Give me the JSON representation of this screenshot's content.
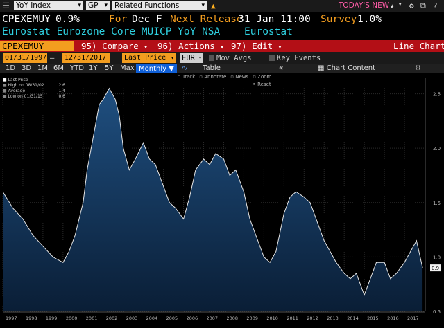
{
  "cmdbar": {
    "security": "CPEXEMUY",
    "yellow_key": "Index",
    "ticker_field": "YoY Index",
    "gp": "GP",
    "related": "Related Functions Menu",
    "todays_new": "TODAY'S NEW"
  },
  "header": {
    "ticker": "CPEXEMUY",
    "value": "0.9%",
    "for_label": "For",
    "for_value": "Dec F",
    "next_release_label": "Next Release",
    "next_release_value": "31 Jan 11:00",
    "survey_label": "Survey",
    "survey_value": "1.0%",
    "description": "Eurostat Eurozone Core MUICP YoY NSA",
    "source": "Eurostat"
  },
  "fnbar": {
    "ticker_box": "CPEXEMUY Index",
    "compare": "95) Compare",
    "actions": "96) Actions",
    "edit": "97) Edit",
    "chart_type": "Line Chart"
  },
  "datebar": {
    "start": "01/31/1997",
    "end": "12/31/2017",
    "field": "Last Price",
    "currency": "EUR",
    "mov_avgs": "Mov Avgs",
    "key_events": "Key Events"
  },
  "periods": [
    "1D",
    "3D",
    "1M",
    "6M",
    "YTD",
    "1Y",
    "5Y",
    "Max"
  ],
  "period_selected": "Monthly",
  "table_label": "Table",
  "chart_content": "Chart Content",
  "tools": [
    "Track",
    "Annotate",
    "News",
    "Zoom"
  ],
  "reset_label": "Reset",
  "legend": [
    {
      "label": "Last Price",
      "value": ""
    },
    {
      "label": "High on 08/31/02",
      "value": "2.6"
    },
    {
      "label": "Average",
      "value": "1.4"
    },
    {
      "label": "Low on 01/31/15",
      "value": "0.6"
    }
  ],
  "colors": {
    "line": "#e6e6e6",
    "area_top": "#1f4f80",
    "area_bottom": "#0a1e36",
    "accent_orange": "#f39d1f",
    "function_bar_red": "#b30f16",
    "header_cyan": "#2fd0e0",
    "header_orange": "#f39d1f",
    "todays_new_pink": "#ff5ca8",
    "last_value_tag": "#f0f0f0"
  },
  "chart_data": {
    "type": "area",
    "ylim": [
      0.5,
      2.65
    ],
    "yticks": [
      "2.5",
      "2.0",
      "1.5",
      "1.0",
      "0.5"
    ],
    "ytick_values": [
      2.5,
      2.0,
      1.5,
      1.0,
      0.5
    ],
    "xticks": [
      "1997",
      "1998",
      "1999",
      "2000",
      "2001",
      "2002",
      "2003",
      "2004",
      "2005",
      "2006",
      "2007",
      "2008",
      "2009",
      "2010",
      "2011",
      "2012",
      "2013",
      "2014",
      "2015",
      "2016",
      "2017"
    ],
    "xlim": [
      1997.0,
      2018.0
    ],
    "last_value_label": "0.9",
    "series": [
      {
        "x": [
          1997.0,
          1997.5,
          1998.0,
          1998.5,
          1999.0,
          1999.5,
          2000.0,
          2000.3,
          2000.6,
          2001.0,
          2001.2,
          2001.5,
          2001.8,
          2002.0,
          2002.3,
          2002.6,
          2002.8,
          2003.0,
          2003.3,
          2003.6,
          2004.0,
          2004.3,
          2004.6,
          2005.0,
          2005.3,
          2005.6,
          2006.0,
          2006.3,
          2006.6,
          2007.0,
          2007.3,
          2007.6,
          2008.0,
          2008.3,
          2008.6,
          2009.0,
          2009.3,
          2009.6,
          2010.0,
          2010.3,
          2010.6,
          2011.0,
          2011.3,
          2011.6,
          2012.0,
          2012.3,
          2012.6,
          2013.0,
          2013.3,
          2013.6,
          2014.0,
          2014.3,
          2014.6,
          2015.0,
          2015.3,
          2015.6,
          2016.0,
          2016.3,
          2016.6,
          2017.0,
          2017.3,
          2017.6,
          2017.9
        ],
        "y": [
          1.6,
          1.45,
          1.35,
          1.2,
          1.1,
          1.0,
          0.95,
          1.05,
          1.2,
          1.5,
          1.8,
          2.1,
          2.4,
          2.45,
          2.55,
          2.45,
          2.3,
          2.0,
          1.8,
          1.9,
          2.05,
          1.9,
          1.85,
          1.65,
          1.5,
          1.45,
          1.35,
          1.55,
          1.8,
          1.9,
          1.85,
          1.95,
          1.9,
          1.75,
          1.8,
          1.6,
          1.35,
          1.2,
          1.0,
          0.95,
          1.05,
          1.4,
          1.55,
          1.6,
          1.55,
          1.5,
          1.35,
          1.15,
          1.05,
          0.95,
          0.85,
          0.8,
          0.85,
          0.65,
          0.8,
          0.95,
          0.95,
          0.8,
          0.85,
          0.95,
          1.05,
          1.15,
          0.9
        ]
      }
    ]
  }
}
